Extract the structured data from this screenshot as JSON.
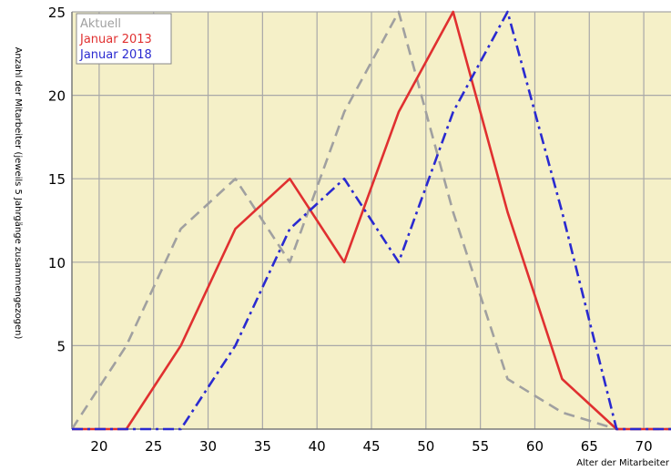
{
  "chart_data": {
    "type": "line",
    "xlabel": "Alter der Mitarbeiter",
    "ylabel": "Anzahl der Mitarbeiter (jeweils 5 Jahrgänge zusammengezogen)",
    "xlim": [
      17.5,
      72.5
    ],
    "ylim": [
      0,
      25
    ],
    "x_ticks": [
      20,
      25,
      30,
      35,
      40,
      45,
      50,
      55,
      60,
      65,
      70
    ],
    "y_ticks": [
      5,
      10,
      15,
      20,
      25
    ],
    "grid": true,
    "legend_position": "top-left",
    "series": [
      {
        "name": "Aktuell",
        "color": "#a0a0a0",
        "style": "dashed",
        "x": [
          17.5,
          22.5,
          27.5,
          32.5,
          37.5,
          42.5,
          47.5,
          52.5,
          57.5,
          62.5,
          67.5,
          72.5
        ],
        "y": [
          0,
          5,
          12,
          15,
          10,
          19,
          25,
          13,
          3,
          1,
          0,
          0
        ]
      },
      {
        "name": "Januar 2013",
        "color": "#e03030",
        "style": "solid",
        "x": [
          17.5,
          22.5,
          27.5,
          32.5,
          37.5,
          42.5,
          47.5,
          52.5,
          57.5,
          62.5,
          67.5,
          72.5
        ],
        "y": [
          0,
          0,
          5,
          12,
          15,
          10,
          19,
          25,
          13,
          3,
          0,
          0
        ]
      },
      {
        "name": "Januar 2018",
        "color": "#2a2ad0",
        "style": "dashdot",
        "x": [
          17.5,
          22.5,
          27.5,
          32.5,
          37.5,
          42.5,
          47.5,
          52.5,
          57.5,
          62.5,
          67.5,
          72.5
        ],
        "y": [
          0,
          0,
          0,
          5,
          12,
          15,
          10,
          19,
          25,
          13,
          0,
          0
        ]
      }
    ]
  },
  "colors": {
    "plot_background": "#f5f0c8",
    "grid": "#a8a8a8"
  }
}
